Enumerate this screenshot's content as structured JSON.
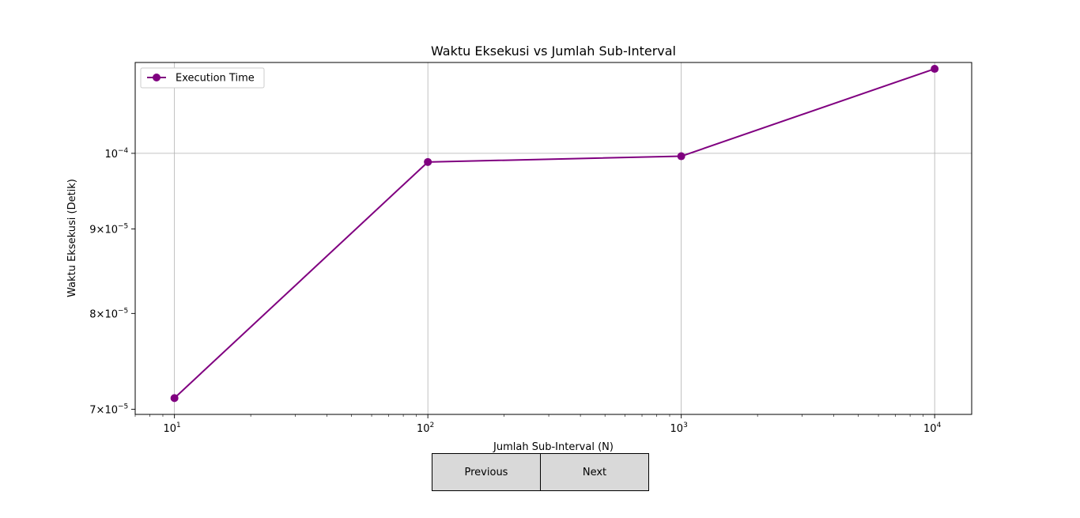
{
  "chart_data": {
    "type": "line",
    "title": "Waktu Eksekusi vs Jumlah Sub-Interval",
    "xlabel": "Jumlah Sub-Interval (N)",
    "ylabel": "Waktu Eksekusi (Detik)",
    "xscale": "log",
    "yscale": "log",
    "xlim": [
      7,
      14000
    ],
    "ylim": [
      6.95e-05,
      0.0001135
    ],
    "x_ticks": [
      {
        "value": 10,
        "base": "10",
        "exp": "1"
      },
      {
        "value": 100,
        "base": "10",
        "exp": "2"
      },
      {
        "value": 1000,
        "base": "10",
        "exp": "3"
      },
      {
        "value": 10000,
        "base": "10",
        "exp": "4"
      }
    ],
    "y_ticks": [
      {
        "value": 7e-05,
        "mant": "7×10",
        "exp": "−5"
      },
      {
        "value": 8e-05,
        "mant": "8×10",
        "exp": "−5"
      },
      {
        "value": 9e-05,
        "mant": "9×10",
        "exp": "−5"
      },
      {
        "value": 0.0001,
        "mant": "10",
        "exp": "−4"
      }
    ],
    "grid": true,
    "legend_position": "top-left",
    "series": [
      {
        "name": "Execution Time",
        "color": "#800080",
        "marker": "circle",
        "x": [
          10,
          100,
          1000,
          10000
        ],
        "y": [
          7.11e-05,
          9.88e-05,
          9.96e-05,
          0.0001125
        ]
      }
    ]
  },
  "controls": {
    "previous_label": "Previous",
    "next_label": "Next"
  }
}
